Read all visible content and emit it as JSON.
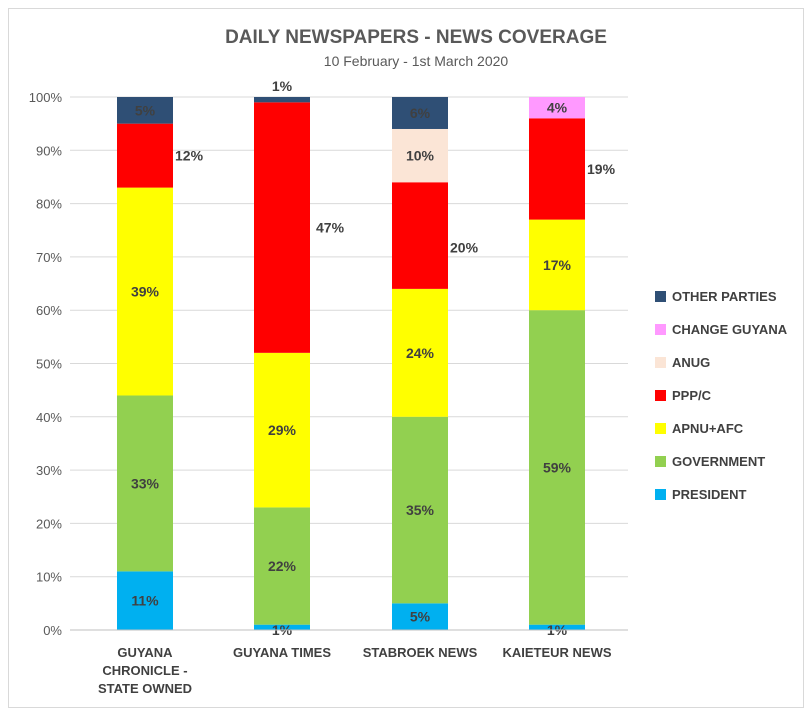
{
  "chart_data": {
    "type": "bar",
    "stacked": true,
    "percent_stacked": true,
    "title": "DAILY NEWSPAPERS - NEWS COVERAGE",
    "subtitle": "10 February - 1st March 2020",
    "categories": [
      [
        "GUYANA",
        "CHRONICLE -",
        "STATE OWNED"
      ],
      [
        "GUYANA TIMES"
      ],
      [
        "STABROEK NEWS"
      ],
      [
        "KAIETEUR NEWS"
      ]
    ],
    "y_ticks": [
      "0%",
      "10%",
      "20%",
      "30%",
      "40%",
      "50%",
      "60%",
      "70%",
      "80%",
      "90%",
      "100%"
    ],
    "ylim": [
      0,
      100
    ],
    "grid": true,
    "legend_position": "right",
    "series": [
      {
        "name": "PRESIDENT",
        "color": "#00b0f0",
        "values": [
          11,
          1,
          5,
          1
        ],
        "labels": [
          "11%",
          "1%",
          "5%",
          "1%"
        ]
      },
      {
        "name": "GOVERNMENT",
        "color": "#92d050",
        "values": [
          33,
          22,
          35,
          59
        ],
        "labels": [
          "33%",
          "22%",
          "35%",
          "59%"
        ]
      },
      {
        "name": "APNU+AFC",
        "color": "#ffff00",
        "values": [
          39,
          29,
          24,
          17
        ],
        "labels": [
          "39%",
          "29%",
          "24%",
          "17%"
        ]
      },
      {
        "name": "PPP/C",
        "color": "#ff0000",
        "values": [
          12,
          47,
          20,
          19
        ],
        "labels": [
          "12%",
          "47%",
          "20%",
          "19%"
        ]
      },
      {
        "name": "ANUG",
        "color": "#fbe5d6",
        "values": [
          0,
          0,
          10,
          0
        ],
        "labels": [
          "",
          "",
          "10%",
          ""
        ]
      },
      {
        "name": "CHANGE GUYANA",
        "color": "#ff99ff",
        "values": [
          0,
          0,
          0,
          4
        ],
        "labels": [
          "",
          "",
          "",
          "4%"
        ]
      },
      {
        "name": "OTHER PARTIES",
        "color": "#2f4f75",
        "values": [
          5,
          1,
          6,
          0
        ],
        "labels": [
          "5%",
          "1%",
          "6%",
          ""
        ]
      }
    ]
  }
}
